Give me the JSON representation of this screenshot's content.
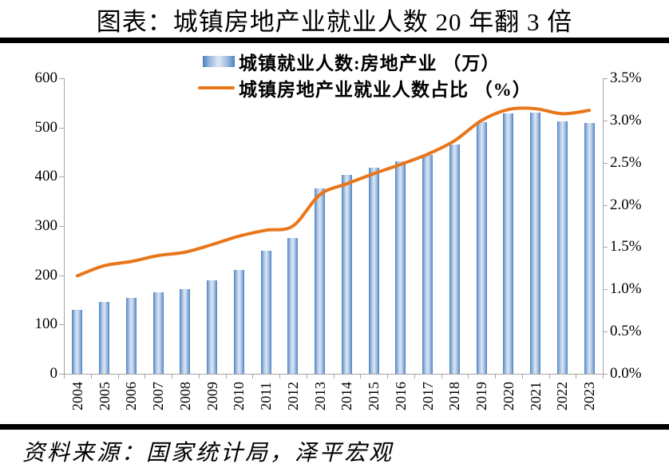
{
  "title": "图表：城镇房地产业就业人数 20 年翻 3 倍",
  "source": "资料来源：国家统计局，泽平宏观",
  "legend": {
    "bar_label": "城镇就业人数:房地产业 （万）",
    "line_label": "城镇房地产业就业人数占比 （%）"
  },
  "chart_data": {
    "type": "bar",
    "title": "图表：城镇房地产业就业人数 20 年翻 3 倍",
    "categories": [
      "2004",
      "2005",
      "2006",
      "2007",
      "2008",
      "2009",
      "2010",
      "2011",
      "2012",
      "2013",
      "2014",
      "2015",
      "2016",
      "2017",
      "2018",
      "2019",
      "2020",
      "2021",
      "2022",
      "2023"
    ],
    "series": [
      {
        "name": "城镇就业人数:房地产业 （万）",
        "type": "bar",
        "axis": "left",
        "values": [
          130,
          146,
          154,
          166,
          172,
          190,
          211,
          249,
          275,
          376,
          403,
          418,
          432,
          445,
          466,
          511,
          528,
          530,
          513,
          509
        ]
      },
      {
        "name": "城镇房地产业就业人数占比 （%）",
        "type": "line",
        "axis": "right",
        "values": [
          1.16,
          1.28,
          1.33,
          1.4,
          1.44,
          1.53,
          1.63,
          1.7,
          1.75,
          2.12,
          2.25,
          2.37,
          2.48,
          2.6,
          2.76,
          3.0,
          3.13,
          3.14,
          3.08,
          3.12
        ]
      }
    ],
    "left_axis": {
      "min": 0,
      "max": 600,
      "step": 100,
      "tick_labels": [
        "0",
        "100",
        "200",
        "300",
        "400",
        "500",
        "600"
      ]
    },
    "right_axis": {
      "min": 0,
      "max": 3.5,
      "step": 0.5,
      "tick_labels": [
        "0.0%",
        "0.5%",
        "1.0%",
        "1.5%",
        "2.0%",
        "2.5%",
        "3.0%",
        "3.5%"
      ]
    },
    "grid": false,
    "legend_position": "top-center",
    "colors": {
      "bar_edge": "#4a80c0",
      "bar_mid": "#8fb0d9",
      "bar_center": "#d6e3f3",
      "line": "#e8761a",
      "axis": "#a6a6a6",
      "rule": "#000000"
    }
  }
}
